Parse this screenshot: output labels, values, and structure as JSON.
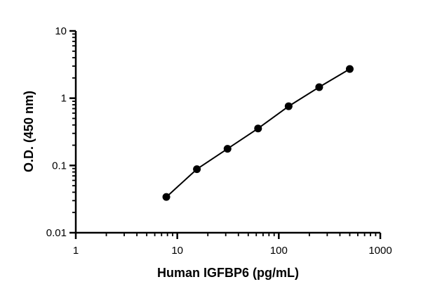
{
  "chart_data": {
    "type": "scatter",
    "xlabel": "Human IGFBP6 (pg/mL)",
    "ylabel": "O.D. (450 nm)",
    "xscale": "log",
    "yscale": "log",
    "xlim": [
      1,
      1000
    ],
    "ylim": [
      0.01,
      10
    ],
    "x_ticks": [
      "1",
      "10",
      "100",
      "1000"
    ],
    "y_ticks": [
      "0.01",
      "0.1",
      "1",
      "10"
    ],
    "grid": false,
    "legend": "none",
    "series": [
      {
        "x": [
          7.8,
          15.6,
          31.25,
          62.5,
          125,
          250,
          500
        ],
        "y": [
          0.034,
          0.088,
          0.177,
          0.355,
          0.76,
          1.46,
          2.72
        ],
        "marker": "circle",
        "color": "#000000",
        "fit_line": true
      }
    ]
  }
}
